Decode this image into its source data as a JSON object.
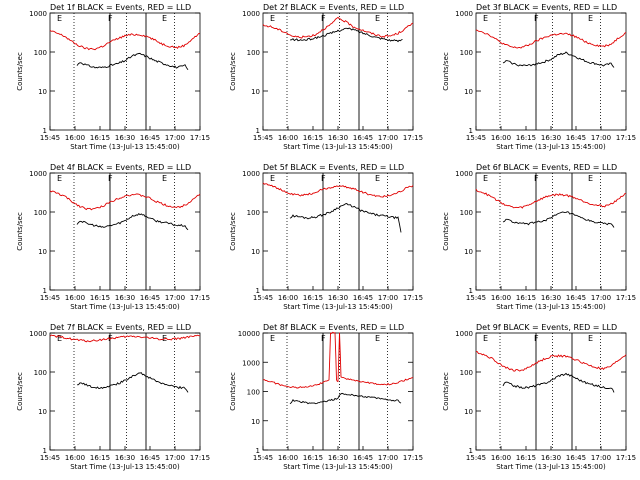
{
  "x_ticks": [
    "15:45",
    "16:00",
    "16:15",
    "16:30",
    "16:45",
    "17:00",
    "17:15"
  ],
  "y_ticks": [
    "1",
    "10",
    "100",
    "1000"
  ],
  "ylabel": "Counts/sec",
  "xlabel": "Start Time (13-Jul-13 15:45:00)",
  "markers": {
    "E": "E",
    "F": "F"
  },
  "colors": {
    "black": "#000000",
    "red": "#e00000"
  },
  "chart_data": [
    {
      "type": "line",
      "title": "Det 1f BLACK = Events, RED = LLD",
      "ylim": [
        1,
        1000
      ],
      "xlim": [
        0,
        100
      ],
      "series": [
        {
          "color": "black",
          "x": [
            18,
            20,
            25,
            30,
            35,
            40,
            45,
            50,
            55,
            60,
            65,
            70,
            73,
            76,
            80,
            85,
            90,
            92
          ],
          "y": [
            45,
            55,
            45,
            40,
            40,
            45,
            50,
            60,
            80,
            90,
            75,
            60,
            55,
            50,
            45,
            40,
            45,
            35
          ]
        },
        {
          "color": "red",
          "x": [
            0,
            5,
            10,
            15,
            20,
            25,
            30,
            35,
            40,
            45,
            50,
            55,
            60,
            65,
            70,
            75,
            80,
            85,
            90,
            95,
            100
          ],
          "y": [
            350,
            300,
            250,
            180,
            140,
            120,
            120,
            140,
            180,
            220,
            260,
            280,
            280,
            250,
            200,
            160,
            140,
            130,
            150,
            220,
            300
          ]
        }
      ]
    },
    {
      "type": "line",
      "title": "Det 2f BLACK = Events, RED = LLD",
      "ylim": [
        1,
        1000
      ],
      "xlim": [
        0,
        100
      ],
      "series": [
        {
          "color": "black",
          "x": [
            18,
            20,
            25,
            30,
            35,
            40,
            45,
            50,
            55,
            60,
            65,
            70,
            75,
            80,
            85,
            90,
            93
          ],
          "y": [
            200,
            210,
            200,
            210,
            230,
            260,
            300,
            350,
            400,
            380,
            320,
            280,
            240,
            220,
            200,
            190,
            210
          ]
        },
        {
          "color": "red",
          "x": [
            0,
            5,
            10,
            15,
            20,
            25,
            30,
            35,
            40,
            45,
            50,
            55,
            60,
            65,
            70,
            75,
            80,
            85,
            90,
            95,
            100
          ],
          "y": [
            480,
            450,
            380,
            320,
            250,
            240,
            250,
            280,
            380,
            500,
            750,
            600,
            450,
            380,
            320,
            280,
            250,
            260,
            300,
            400,
            550
          ]
        }
      ]
    },
    {
      "type": "line",
      "title": "Det 3f BLACK = Events, RED = LLD",
      "ylim": [
        1,
        1000
      ],
      "xlim": [
        0,
        100
      ],
      "series": [
        {
          "color": "black",
          "x": [
            18,
            20,
            25,
            30,
            35,
            40,
            45,
            50,
            55,
            60,
            65,
            70,
            75,
            80,
            85,
            90,
            92
          ],
          "y": [
            50,
            60,
            50,
            45,
            45,
            50,
            55,
            65,
            85,
            95,
            80,
            65,
            55,
            50,
            45,
            50,
            40
          ]
        },
        {
          "color": "red",
          "x": [
            0,
            5,
            10,
            15,
            20,
            25,
            30,
            35,
            40,
            45,
            50,
            55,
            60,
            65,
            70,
            75,
            80,
            85,
            90,
            95,
            100
          ],
          "y": [
            380,
            320,
            260,
            190,
            150,
            130,
            130,
            150,
            190,
            230,
            270,
            290,
            290,
            260,
            210,
            170,
            150,
            140,
            160,
            230,
            320
          ]
        }
      ]
    },
    {
      "type": "line",
      "title": "Det 4f BLACK = Events, RED = LLD",
      "ylim": [
        1,
        1000
      ],
      "xlim": [
        0,
        100
      ],
      "series": [
        {
          "color": "black",
          "x": [
            18,
            20,
            25,
            30,
            35,
            40,
            45,
            50,
            55,
            60,
            65,
            70,
            75,
            80,
            85,
            90,
            92
          ],
          "y": [
            50,
            60,
            50,
            45,
            40,
            45,
            50,
            60,
            80,
            90,
            75,
            60,
            55,
            50,
            45,
            45,
            35
          ]
        },
        {
          "color": "red",
          "x": [
            0,
            5,
            10,
            15,
            20,
            25,
            30,
            35,
            40,
            45,
            50,
            55,
            60,
            65,
            70,
            75,
            80,
            85,
            90,
            95,
            100
          ],
          "y": [
            350,
            300,
            250,
            180,
            140,
            120,
            120,
            140,
            180,
            220,
            260,
            280,
            270,
            240,
            190,
            160,
            140,
            130,
            150,
            210,
            290
          ]
        }
      ]
    },
    {
      "type": "line",
      "title": "Det 5f BLACK = Events, RED = LLD",
      "ylim": [
        1,
        1000
      ],
      "xlim": [
        0,
        100
      ],
      "series": [
        {
          "color": "black",
          "x": [
            18,
            20,
            25,
            30,
            35,
            40,
            45,
            50,
            55,
            60,
            65,
            70,
            75,
            80,
            85,
            90,
            92
          ],
          "y": [
            70,
            80,
            75,
            70,
            75,
            85,
            100,
            130,
            160,
            140,
            110,
            95,
            85,
            80,
            75,
            70,
            30
          ]
        },
        {
          "color": "red",
          "x": [
            0,
            5,
            10,
            15,
            20,
            25,
            30,
            35,
            40,
            45,
            50,
            55,
            60,
            65,
            70,
            75,
            80,
            85,
            90,
            95,
            100
          ],
          "y": [
            550,
            500,
            400,
            320,
            280,
            270,
            280,
            320,
            380,
            430,
            460,
            440,
            400,
            340,
            290,
            260,
            250,
            270,
            320,
            400,
            480
          ]
        }
      ]
    },
    {
      "type": "line",
      "title": "Det 6f BLACK = Events, RED = LLD",
      "ylim": [
        1,
        1000
      ],
      "xlim": [
        0,
        100
      ],
      "series": [
        {
          "color": "black",
          "x": [
            18,
            20,
            25,
            30,
            35,
            40,
            45,
            50,
            55,
            60,
            65,
            70,
            75,
            80,
            85,
            90,
            92
          ],
          "y": [
            55,
            65,
            55,
            50,
            50,
            55,
            60,
            70,
            90,
            100,
            85,
            70,
            60,
            55,
            50,
            50,
            40
          ]
        },
        {
          "color": "red",
          "x": [
            0,
            5,
            10,
            15,
            20,
            25,
            30,
            35,
            40,
            45,
            50,
            55,
            60,
            65,
            70,
            75,
            80,
            85,
            90,
            95,
            100
          ],
          "y": [
            370,
            310,
            250,
            190,
            150,
            130,
            130,
            150,
            190,
            230,
            270,
            280,
            270,
            240,
            200,
            170,
            150,
            140,
            160,
            220,
            300
          ]
        }
      ]
    },
    {
      "type": "line",
      "title": "Det 7f BLACK = Events, RED = LLD",
      "ylim": [
        1,
        1000
      ],
      "xlim": [
        0,
        100
      ],
      "series": [
        {
          "color": "black",
          "x": [
            18,
            20,
            25,
            30,
            35,
            40,
            45,
            50,
            55,
            60,
            65,
            70,
            75,
            80,
            85,
            90,
            92
          ],
          "y": [
            45,
            55,
            45,
            40,
            40,
            45,
            50,
            60,
            80,
            95,
            75,
            60,
            50,
            45,
            40,
            40,
            30
          ]
        },
        {
          "color": "red",
          "x": [
            0,
            5,
            10,
            15,
            20,
            25,
            30,
            35,
            40,
            45,
            50,
            55,
            60,
            65,
            70,
            75,
            80,
            85,
            90,
            95,
            100
          ],
          "y": [
            850,
            800,
            760,
            700,
            650,
            620,
            640,
            680,
            720,
            760,
            800,
            820,
            800,
            760,
            720,
            700,
            700,
            720,
            760,
            800,
            850
          ]
        }
      ]
    },
    {
      "type": "line",
      "title": "Det 8f BLACK = Events, RED = LLD",
      "ylim": [
        1,
        10000
      ],
      "xlim": [
        0,
        100
      ],
      "series": [
        {
          "color": "black",
          "x": [
            18,
            20,
            25,
            30,
            35,
            40,
            45,
            48,
            50,
            52,
            55,
            60,
            65,
            70,
            75,
            80,
            85,
            90,
            92
          ],
          "y": [
            40,
            50,
            45,
            40,
            40,
            45,
            50,
            55,
            60,
            85,
            80,
            75,
            70,
            65,
            60,
            55,
            50,
            50,
            40
          ]
        },
        {
          "color": "red",
          "x": [
            0,
            5,
            10,
            15,
            20,
            25,
            30,
            35,
            40,
            44,
            45,
            48,
            49,
            50,
            51,
            52,
            55,
            60,
            65,
            70,
            75,
            80,
            85,
            90,
            95,
            100
          ],
          "y": [
            250,
            220,
            180,
            150,
            140,
            140,
            150,
            170,
            200,
            250,
            10000,
            10000,
            250,
            220,
            10000,
            300,
            280,
            250,
            220,
            200,
            180,
            170,
            180,
            200,
            250,
            300
          ]
        }
      ]
    },
    {
      "type": "line",
      "title": "Det 9f BLACK = Events, RED = LLD",
      "ylim": [
        1,
        1000
      ],
      "xlim": [
        0,
        100
      ],
      "series": [
        {
          "color": "black",
          "x": [
            18,
            20,
            25,
            30,
            35,
            40,
            45,
            50,
            55,
            60,
            65,
            70,
            75,
            80,
            85,
            90,
            92
          ],
          "y": [
            45,
            55,
            45,
            40,
            40,
            45,
            50,
            60,
            80,
            90,
            75,
            60,
            50,
            45,
            40,
            40,
            30
          ]
        },
        {
          "color": "red",
          "x": [
            0,
            5,
            10,
            15,
            20,
            25,
            30,
            35,
            40,
            45,
            50,
            55,
            60,
            65,
            70,
            75,
            80,
            85,
            90,
            95,
            100
          ],
          "y": [
            330,
            280,
            230,
            170,
            130,
            110,
            110,
            130,
            170,
            210,
            250,
            260,
            250,
            220,
            180,
            150,
            130,
            120,
            140,
            200,
            280
          ]
        }
      ]
    }
  ]
}
